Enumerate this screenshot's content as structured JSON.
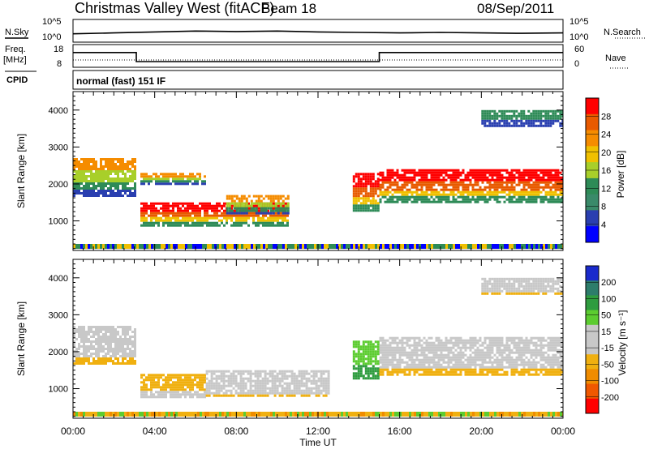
{
  "header": {
    "title": "Christmas Valley West (fitACF)",
    "beam": "Beam 18",
    "date": "08/Sep/2011"
  },
  "strips": {
    "nsky_label": "N.Sky",
    "nsky_ticks": [
      "10^5",
      "10^0"
    ],
    "nsearch_label": "N.Search",
    "nsearch_ticks": [
      "10^5",
      "10^0"
    ],
    "freq_label": "Freq.",
    "freq_unit": "[MHz]",
    "freq_ticks": [
      "18",
      "8"
    ],
    "nave_label": "Nave",
    "nave_ticks": [
      "60",
      "0"
    ],
    "cpid_label": "CPID",
    "cpid_value": "normal (fast) 151 IF"
  },
  "axes": {
    "ylabel": "Slant Range [km]",
    "xlabel": "Time UT",
    "y_ticks": [
      "4000",
      "3000",
      "2000",
      "1000"
    ],
    "x_ticks": [
      "00:00",
      "04:00",
      "08:00",
      "12:00",
      "16:00",
      "20:00",
      "00:00"
    ]
  },
  "colorbars": {
    "power": {
      "label": "Power [dB]",
      "ticks": [
        "28",
        "24",
        "20",
        "16",
        "12",
        "8",
        "4"
      ],
      "colors": [
        "#ff0000",
        "#e85a00",
        "#f58c00",
        "#f0c000",
        "#a8cf2a",
        "#2e8b57",
        "#3a8a6a",
        "#2a3fb0",
        "#0000ff"
      ]
    },
    "velocity": {
      "label": "Velocity [m s⁻¹]",
      "ticks": [
        "200",
        "100",
        "50",
        "15",
        "-15",
        "-50",
        "-100",
        "-200"
      ],
      "colors": [
        "#1a2acc",
        "#2d7d6b",
        "#2f9c3f",
        "#5ccc30",
        "#c8c8c8",
        "#c8c8c8",
        "#f0b010",
        "#f08c00",
        "#f05800",
        "#ff0000"
      ]
    }
  },
  "chart_data": [
    {
      "type": "line",
      "name": "N.Sky / N.Search",
      "x": [
        0,
        2,
        4,
        6,
        8,
        10,
        12,
        14,
        16,
        18,
        20,
        22,
        24
      ],
      "values": [
        2.2,
        2.4,
        2.6,
        2.8,
        2.7,
        2.8,
        2.6,
        2.5,
        2.4,
        2.5,
        2.4,
        2.3,
        2.4
      ],
      "ylim": [
        0,
        5
      ]
    },
    {
      "type": "line",
      "name": "Freq",
      "x": [
        0,
        3.1,
        3.1,
        15.0,
        15.0,
        24
      ],
      "values": [
        14.5,
        14.5,
        10.5,
        10.5,
        14.5,
        14.5
      ],
      "ylim": [
        8,
        18
      ]
    },
    {
      "type": "heatmap",
      "title": "Power",
      "xlim": [
        0,
        24
      ],
      "ylim": [
        200,
        4500
      ],
      "bands": [
        {
          "t": [
            0,
            3.0
          ],
          "r": [
            1700,
            2700
          ],
          "level": "mid"
        },
        {
          "t": [
            3.3,
            10.5
          ],
          "r": [
            900,
            1500
          ],
          "level": "high"
        },
        {
          "t": [
            3.3,
            6.5
          ],
          "r": [
            2000,
            2300
          ],
          "level": "mid"
        },
        {
          "t": [
            7.5,
            10.5
          ],
          "r": [
            1200,
            1700
          ],
          "level": "mid"
        },
        {
          "t": [
            13.7,
            15.0
          ],
          "r": [
            1300,
            2300
          ],
          "level": "high"
        },
        {
          "t": [
            15.0,
            24
          ],
          "r": [
            1500,
            2400
          ],
          "level": "high"
        },
        {
          "t": [
            20.0,
            24
          ],
          "r": [
            3600,
            4000
          ],
          "level": "low"
        }
      ]
    },
    {
      "type": "heatmap",
      "title": "Velocity",
      "xlim": [
        0,
        24
      ],
      "ylim": [
        200,
        4500
      ],
      "bands": [
        {
          "t": [
            0,
            3.0
          ],
          "r": [
            1700,
            2700
          ],
          "level": "zero"
        },
        {
          "t": [
            3.3,
            6.5
          ],
          "r": [
            800,
            1400
          ],
          "level": "neg"
        },
        {
          "t": [
            6.5,
            12.5
          ],
          "r": [
            800,
            1500
          ],
          "level": "zero"
        },
        {
          "t": [
            13.7,
            15.0
          ],
          "r": [
            1300,
            2300
          ],
          "level": "pos"
        },
        {
          "t": [
            15.0,
            24
          ],
          "r": [
            1400,
            2400
          ],
          "level": "zero"
        },
        {
          "t": [
            20.0,
            24
          ],
          "r": [
            3600,
            4000
          ],
          "level": "zero"
        }
      ]
    }
  ]
}
